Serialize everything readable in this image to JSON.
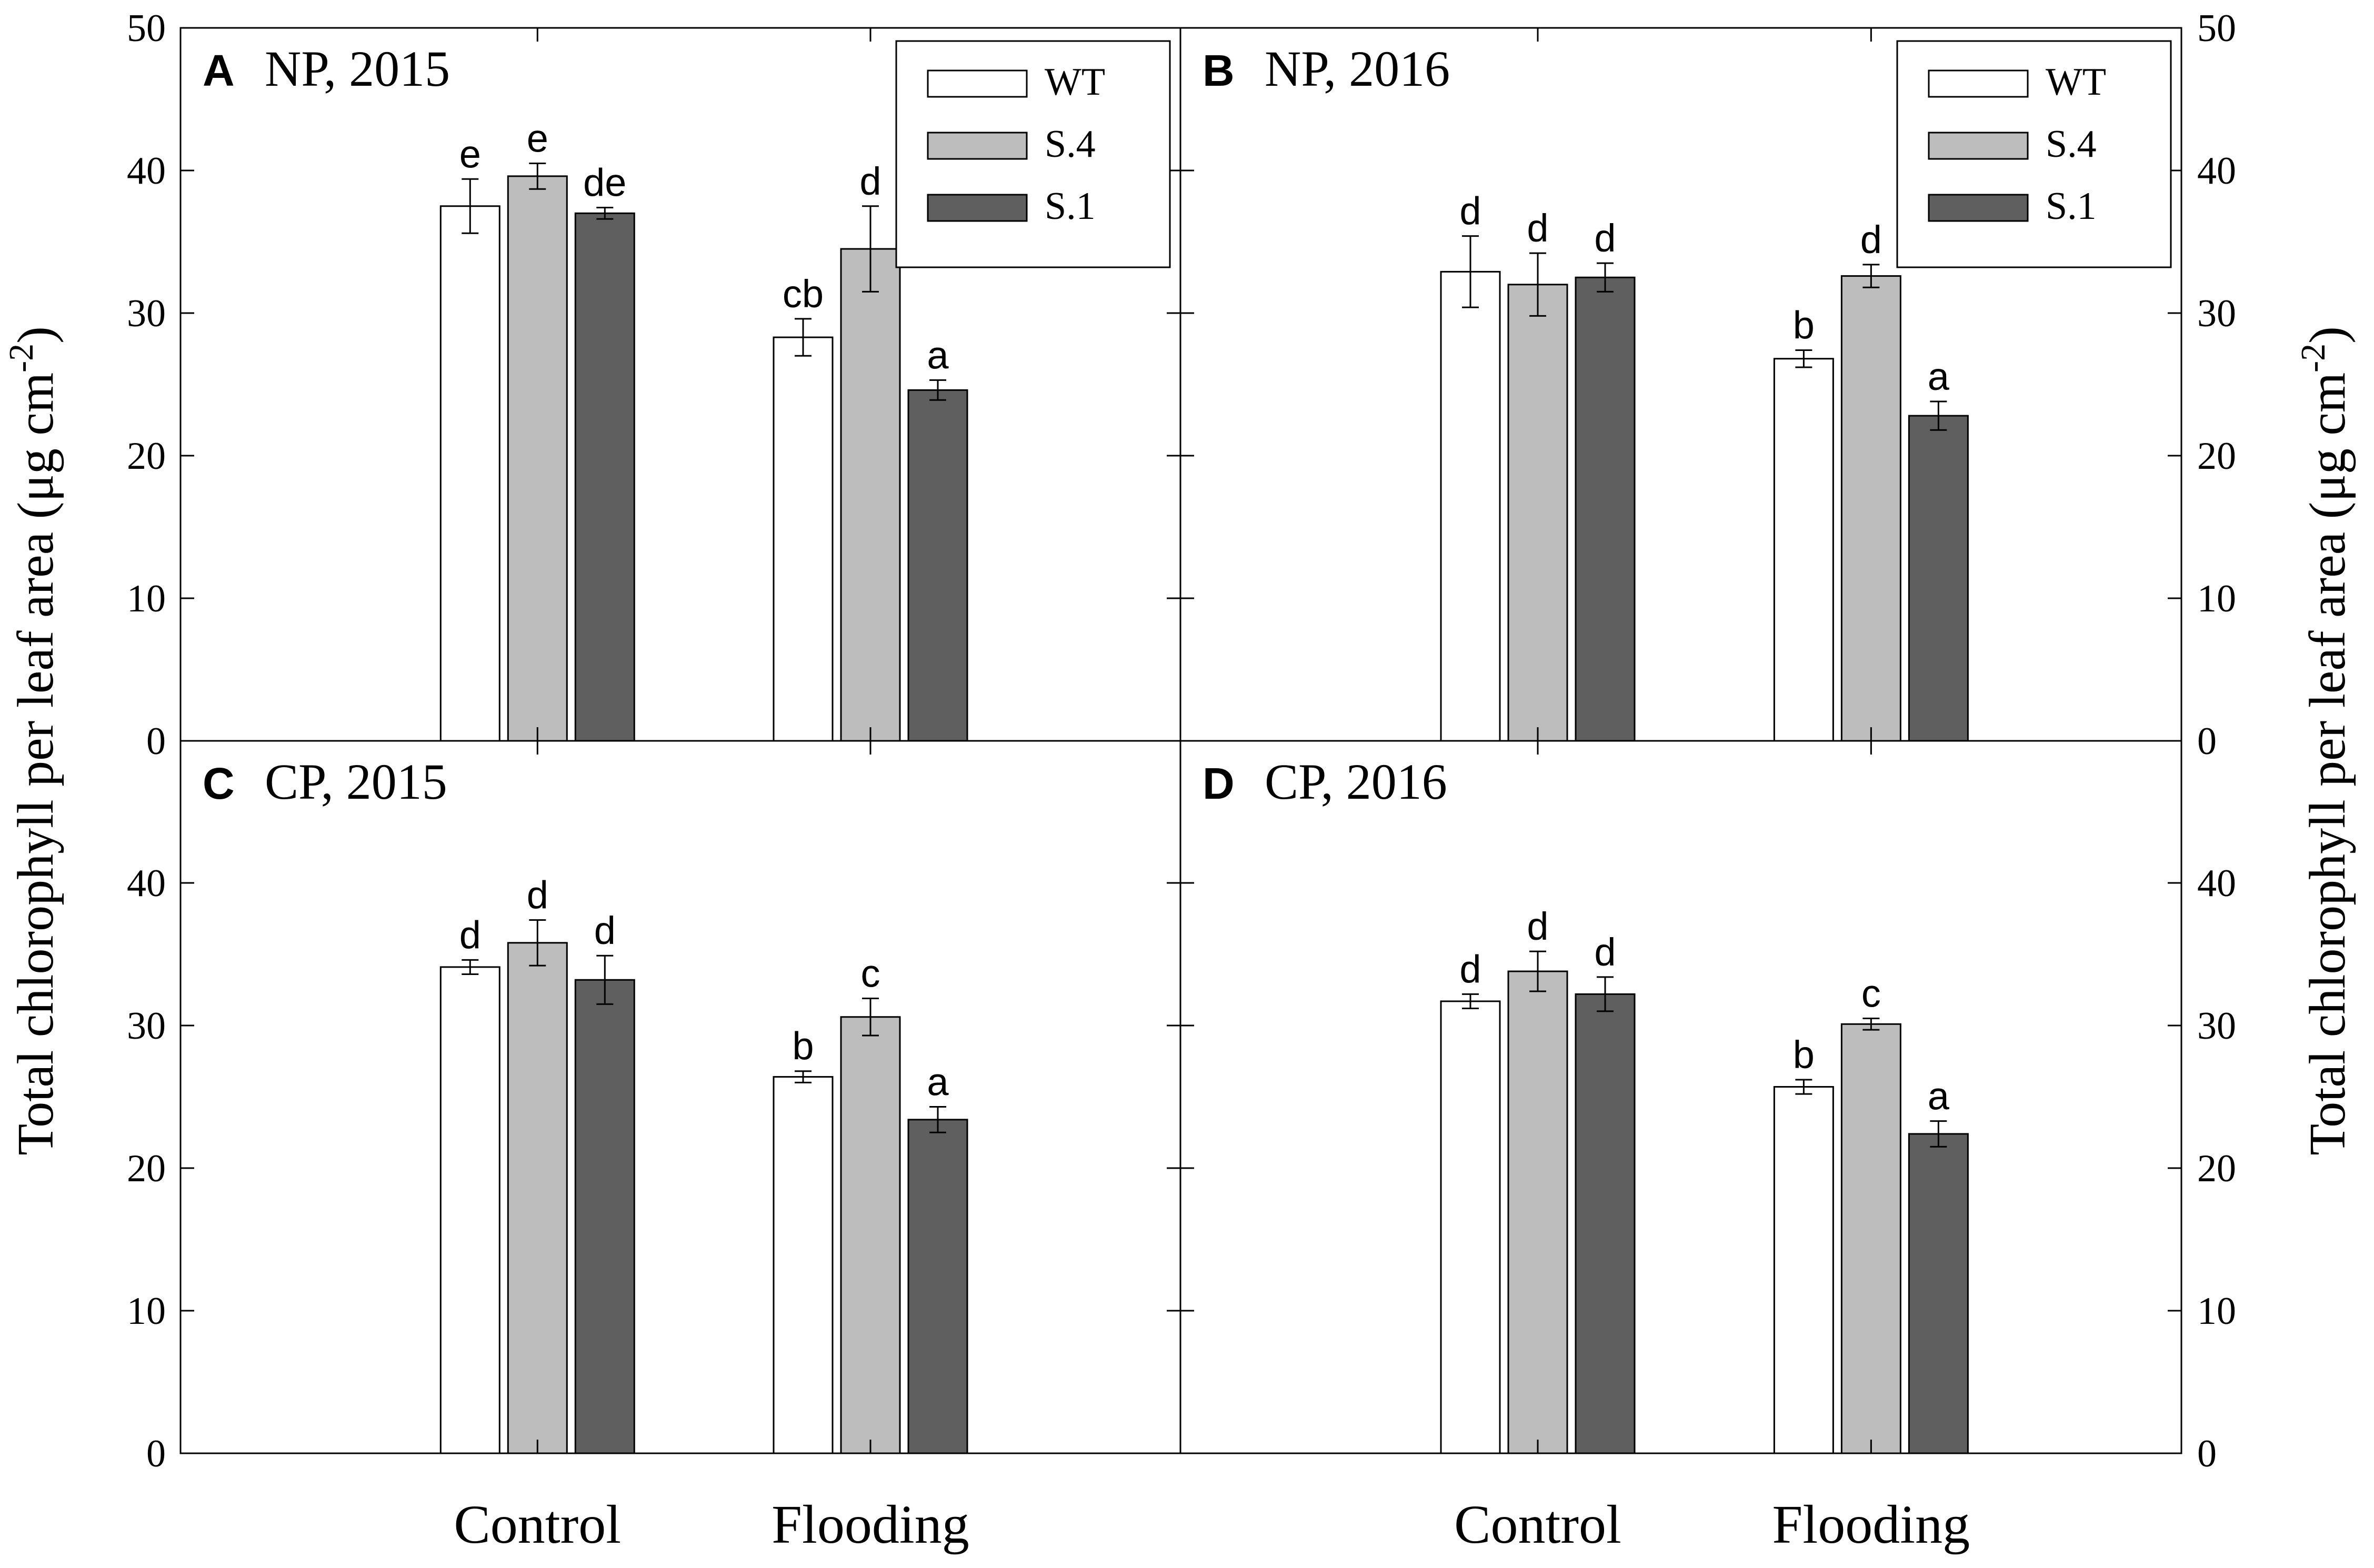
{
  "chart_data": {
    "type": "bar",
    "ylabel": "Total chlorophyll per leaf area (μg cm",
    "ylabel_exponent": "-2",
    "ylabel_close": ")",
    "ylim": [
      0,
      50
    ],
    "yticks": [
      0,
      10,
      20,
      30,
      40,
      50
    ],
    "categories": [
      "Control",
      "Flooding"
    ],
    "legend": {
      "entries": [
        {
          "name": "WT",
          "color": "#ffffff"
        },
        {
          "name": "S.4",
          "color": "#bdbdbd"
        },
        {
          "name": "S.1",
          "color": "#5f5f5f"
        }
      ]
    },
    "panels": [
      {
        "letter": "A",
        "title": "NP, 2015",
        "legend": "top-right",
        "series": [
          {
            "name": "WT",
            "values": [
              37.5,
              28.3
            ],
            "errors": [
              1.9,
              1.3
            ],
            "letters": [
              "e",
              "cb"
            ]
          },
          {
            "name": "S.4",
            "values": [
              39.6,
              34.5
            ],
            "errors": [
              0.9,
              3.0
            ],
            "letters": [
              "e",
              "d"
            ]
          },
          {
            "name": "S.1",
            "values": [
              37.0,
              24.6
            ],
            "errors": [
              0.4,
              0.7
            ],
            "letters": [
              "de",
              "a"
            ]
          }
        ]
      },
      {
        "letter": "B",
        "title": "NP, 2016",
        "legend": "top-right",
        "series": [
          {
            "name": "WT",
            "values": [
              32.9,
              26.8
            ],
            "errors": [
              2.5,
              0.6
            ],
            "letters": [
              "d",
              "b"
            ]
          },
          {
            "name": "S.4",
            "values": [
              32.0,
              32.6
            ],
            "errors": [
              2.2,
              0.8
            ],
            "letters": [
              "d",
              "d"
            ]
          },
          {
            "name": "S.1",
            "values": [
              32.5,
              22.8
            ],
            "errors": [
              1.0,
              1.0
            ],
            "letters": [
              "d",
              "a"
            ]
          }
        ]
      },
      {
        "letter": "C",
        "title": "CP, 2015",
        "legend": null,
        "series": [
          {
            "name": "WT",
            "values": [
              34.1,
              26.4
            ],
            "errors": [
              0.5,
              0.4
            ],
            "letters": [
              "d",
              "b"
            ]
          },
          {
            "name": "S.4",
            "values": [
              35.8,
              30.6
            ],
            "errors": [
              1.6,
              1.3
            ],
            "letters": [
              "d",
              "c"
            ]
          },
          {
            "name": "S.1",
            "values": [
              33.2,
              23.4
            ],
            "errors": [
              1.7,
              0.9
            ],
            "letters": [
              "d",
              "a"
            ]
          }
        ]
      },
      {
        "letter": "D",
        "title": "CP, 2016",
        "legend": null,
        "series": [
          {
            "name": "WT",
            "values": [
              31.7,
              25.7
            ],
            "errors": [
              0.5,
              0.5
            ],
            "letters": [
              "d",
              "b"
            ]
          },
          {
            "name": "S.4",
            "values": [
              33.8,
              30.1
            ],
            "errors": [
              1.4,
              0.4
            ],
            "letters": [
              "d",
              "c"
            ]
          },
          {
            "name": "S.1",
            "values": [
              32.2,
              22.4
            ],
            "errors": [
              1.2,
              0.9
            ],
            "letters": [
              "d",
              "a"
            ]
          }
        ]
      }
    ]
  }
}
